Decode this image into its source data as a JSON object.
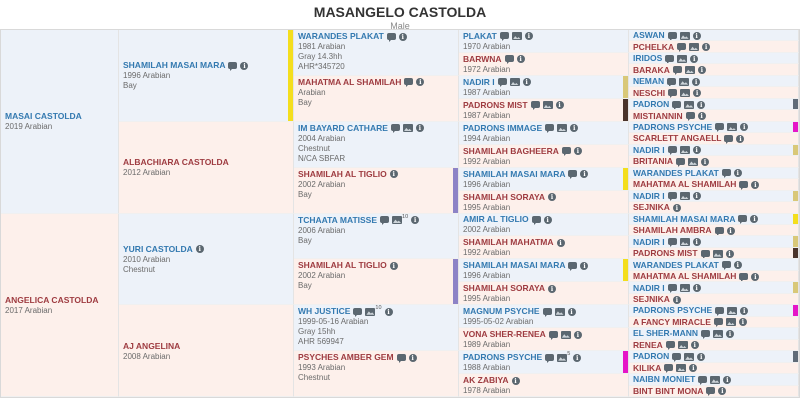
{
  "header": {
    "title": "MASANGELO CASTOLDA",
    "subtitle": "Male"
  },
  "palette": {
    "male_bg": "#edf2f9",
    "female_bg": "#fdf0eb",
    "male_link": "#3379b0",
    "female_link": "#9e3b40",
    "detail_text": "#6b6b6b",
    "icon": "#5b6770"
  },
  "bar_colors": {
    "shamilah_masai_mara": "#f4de1d",
    "shamilah_al_tiglio": "#8d83c6",
    "nadir_i": "#d9c878",
    "padrons_mist": "#4a332a",
    "padrons_psyche": "#e516c8",
    "padron": "#5f6b78"
  },
  "generations": [
    {
      "name": "gen1",
      "cells": [
        {
          "name": "MASAI CASTOLDA",
          "sex": "m",
          "details": [
            "2019 Arabian"
          ],
          "icons": []
        },
        {
          "name": "ANGELICA CASTOLDA",
          "sex": "f",
          "details": [
            "2017 Arabian"
          ],
          "icons": []
        }
      ]
    },
    {
      "name": "gen2",
      "cells": [
        {
          "name": "SHAMILAH MASAI MARA",
          "sex": "m",
          "details": [
            "1996 Arabian",
            "Bay"
          ],
          "icons": [
            "comment",
            "info"
          ],
          "bar": "shamilah_masai_mara"
        },
        {
          "name": "ALBACHIARA CASTOLDA",
          "sex": "f",
          "details": [
            "2012 Arabian"
          ],
          "icons": []
        },
        {
          "name": "YURI CASTOLDA",
          "sex": "m",
          "details": [
            "2010 Arabian",
            "Chestnut"
          ],
          "icons": [
            "info"
          ]
        },
        {
          "name": "AJ ANGELINA",
          "sex": "f",
          "details": [
            "2008 Arabian"
          ],
          "icons": []
        }
      ]
    },
    {
      "name": "gen3",
      "cells": [
        {
          "name": "WARANDES PLAKAT",
          "sex": "m",
          "details": [
            "1981 Arabian",
            "Gray 14.3hh",
            "AHR*345720"
          ],
          "icons": [
            "comment",
            "info"
          ]
        },
        {
          "name": "MAHATMA AL SHAMILAH",
          "sex": "f",
          "details": [
            "Arabian",
            "Bay"
          ],
          "icons": [
            "comment",
            "info"
          ]
        },
        {
          "name": "IM BAYARD CATHARE",
          "sex": "m",
          "details": [
            "2004 Arabian",
            "Chestnut",
            "N/CA SBFAR"
          ],
          "icons": [
            "comment",
            "image",
            "info"
          ]
        },
        {
          "name": "SHAMILAH AL TIGLIO",
          "sex": "f",
          "details": [
            "2002 Arabian",
            "Bay"
          ],
          "icons": [
            "info"
          ],
          "bar": "shamilah_al_tiglio"
        },
        {
          "name": "TCHAATA MATISSE",
          "sex": "m",
          "details": [
            "2006 Arabian",
            "Bay"
          ],
          "icons": [
            "comment",
            "image",
            "info"
          ],
          "image_count": "10"
        },
        {
          "name": "SHAMILAH AL TIGLIO",
          "sex": "f",
          "details": [
            "2002 Arabian",
            "Bay"
          ],
          "icons": [
            "info"
          ],
          "bar": "shamilah_al_tiglio"
        },
        {
          "name": "WH JUSTICE",
          "sex": "m",
          "details": [
            "1999-05-16 Arabian",
            "Gray 15hh",
            "AHR 569947"
          ],
          "icons": [
            "comment",
            "image",
            "info"
          ],
          "image_count": "10"
        },
        {
          "name": "PSYCHES AMBER GEM",
          "sex": "f",
          "details": [
            "1993 Arabian",
            "Chestnut"
          ],
          "icons": [
            "comment",
            "info"
          ]
        }
      ]
    },
    {
      "name": "gen4",
      "cells": [
        {
          "name": "PLAKAT",
          "sex": "m",
          "details": [
            "1970 Arabian"
          ],
          "icons": [
            "comment",
            "image",
            "info"
          ]
        },
        {
          "name": "BARWNA",
          "sex": "f",
          "details": [
            "1972 Arabian"
          ],
          "icons": [
            "comment",
            "info"
          ]
        },
        {
          "name": "NADIR I",
          "sex": "m",
          "details": [
            "1987 Arabian"
          ],
          "icons": [
            "comment",
            "image",
            "info"
          ],
          "bar": "nadir_i"
        },
        {
          "name": "PADRONS MIST",
          "sex": "f",
          "details": [
            "1987 Arabian"
          ],
          "icons": [
            "comment",
            "image",
            "info"
          ],
          "bar": "padrons_mist"
        },
        {
          "name": "PADRONS IMMAGE",
          "sex": "m",
          "details": [
            "1994 Arabian"
          ],
          "icons": [
            "comment",
            "image",
            "info"
          ]
        },
        {
          "name": "SHAMILAH BAGHEERA",
          "sex": "f",
          "details": [
            "1992 Arabian"
          ],
          "icons": [
            "comment",
            "info"
          ]
        },
        {
          "name": "SHAMILAH MASAI MARA",
          "sex": "m",
          "details": [
            "1996 Arabian"
          ],
          "icons": [
            "comment",
            "info"
          ],
          "bar": "shamilah_masai_mara"
        },
        {
          "name": "SHAMILAH SORAYA",
          "sex": "f",
          "details": [
            "1995 Arabian"
          ],
          "icons": [
            "info"
          ]
        },
        {
          "name": "AMIR AL TIGLIO",
          "sex": "m",
          "details": [
            "2002 Arabian"
          ],
          "icons": [
            "comment",
            "info"
          ]
        },
        {
          "name": "SHAMILAH MAHATMA",
          "sex": "f",
          "details": [
            "1992 Arabian"
          ],
          "icons": [
            "info"
          ]
        },
        {
          "name": "SHAMILAH MASAI MARA",
          "sex": "m",
          "details": [
            "1996 Arabian"
          ],
          "icons": [
            "comment",
            "info"
          ],
          "bar": "shamilah_masai_mara"
        },
        {
          "name": "SHAMILAH SORAYA",
          "sex": "f",
          "details": [
            "1995 Arabian"
          ],
          "icons": [
            "info"
          ]
        },
        {
          "name": "MAGNUM PSYCHE",
          "sex": "m",
          "details": [
            "1995-05-02 Arabian"
          ],
          "icons": [
            "comment",
            "image",
            "info"
          ]
        },
        {
          "name": "VONA SHER-RENEA",
          "sex": "f",
          "details": [
            "1989 Arabian"
          ],
          "icons": [
            "comment",
            "image",
            "info"
          ]
        },
        {
          "name": "PADRONS PSYCHE",
          "sex": "m",
          "details": [
            "1988 Arabian"
          ],
          "icons": [
            "comment",
            "image",
            "info"
          ],
          "image_count": "5",
          "bar": "padrons_psyche"
        },
        {
          "name": "AK ZABIYA",
          "sex": "f",
          "details": [
            "1978 Arabian"
          ],
          "icons": [
            "info"
          ]
        }
      ]
    },
    {
      "name": "gen5",
      "cells": [
        {
          "name": "ASWAN",
          "sex": "m",
          "icons": [
            "comment",
            "image",
            "info"
          ]
        },
        {
          "name": "PCHELKA",
          "sex": "f",
          "icons": [
            "comment",
            "image",
            "info"
          ]
        },
        {
          "name": "IRIDOS",
          "sex": "m",
          "icons": [
            "comment",
            "image",
            "info"
          ]
        },
        {
          "name": "BARAKA",
          "sex": "f",
          "icons": [
            "comment",
            "image",
            "info"
          ]
        },
        {
          "name": "NEMAN",
          "sex": "m",
          "icons": [
            "comment",
            "image",
            "info"
          ]
        },
        {
          "name": "NESCHI",
          "sex": "f",
          "icons": [
            "comment",
            "image",
            "info"
          ]
        },
        {
          "name": "PADRON",
          "sex": "m",
          "icons": [
            "comment",
            "image",
            "info"
          ],
          "bar": "padron"
        },
        {
          "name": "MISTIANNIN",
          "sex": "f",
          "icons": [
            "comment",
            "info"
          ]
        },
        {
          "name": "PADRONS PSYCHE",
          "sex": "m",
          "icons": [
            "comment",
            "image",
            "info"
          ],
          "bar": "padrons_psyche"
        },
        {
          "name": "SCARLETT ANGAELL",
          "sex": "f",
          "icons": [
            "comment",
            "info"
          ]
        },
        {
          "name": "NADIR I",
          "sex": "m",
          "icons": [
            "comment",
            "image",
            "info"
          ],
          "bar": "nadir_i"
        },
        {
          "name": "BRITANIA",
          "sex": "f",
          "icons": [
            "comment",
            "image",
            "info"
          ]
        },
        {
          "name": "WARANDES PLAKAT",
          "sex": "m",
          "icons": [
            "comment",
            "info"
          ]
        },
        {
          "name": "MAHATMA AL SHAMILAH",
          "sex": "f",
          "icons": [
            "comment",
            "info"
          ]
        },
        {
          "name": "NADIR I",
          "sex": "m",
          "icons": [
            "comment",
            "image",
            "info"
          ],
          "bar": "nadir_i"
        },
        {
          "name": "SEJNIKA",
          "sex": "f",
          "icons": [
            "info"
          ]
        },
        {
          "name": "SHAMILAH MASAI MARA",
          "sex": "m",
          "icons": [
            "comment",
            "info"
          ],
          "bar": "shamilah_masai_mara"
        },
        {
          "name": "SHAMILAH AMBRA",
          "sex": "f",
          "icons": [
            "comment",
            "info"
          ]
        },
        {
          "name": "NADIR I",
          "sex": "m",
          "icons": [
            "comment",
            "image",
            "info"
          ],
          "bar": "nadir_i"
        },
        {
          "name": "PADRONS MIST",
          "sex": "f",
          "icons": [
            "comment",
            "image",
            "info"
          ],
          "bar": "padrons_mist"
        },
        {
          "name": "WARANDES PLAKAT",
          "sex": "m",
          "icons": [
            "comment",
            "info"
          ]
        },
        {
          "name": "MAHATMA AL SHAMILAH",
          "sex": "f",
          "icons": [
            "comment",
            "info"
          ]
        },
        {
          "name": "NADIR I",
          "sex": "m",
          "icons": [
            "comment",
            "image",
            "info"
          ],
          "bar": "nadir_i"
        },
        {
          "name": "SEJNIKA",
          "sex": "f",
          "icons": [
            "info"
          ]
        },
        {
          "name": "PADRONS PSYCHE",
          "sex": "m",
          "icons": [
            "comment",
            "image",
            "info"
          ],
          "bar": "padrons_psyche"
        },
        {
          "name": "A FANCY MIRACLE",
          "sex": "f",
          "icons": [
            "comment",
            "image",
            "info"
          ]
        },
        {
          "name": "EL SHER-MANN",
          "sex": "m",
          "icons": [
            "comment",
            "image",
            "info"
          ]
        },
        {
          "name": "RENEA",
          "sex": "f",
          "icons": [
            "comment",
            "image",
            "info"
          ]
        },
        {
          "name": "PADRON",
          "sex": "m",
          "icons": [
            "comment",
            "image",
            "info"
          ],
          "bar": "padron"
        },
        {
          "name": "KILIKA",
          "sex": "f",
          "icons": [
            "comment",
            "image",
            "info"
          ]
        },
        {
          "name": "NAIBN MONIET",
          "sex": "m",
          "icons": [
            "comment",
            "image",
            "info"
          ]
        },
        {
          "name": "BINT BINT MONA",
          "sex": "f",
          "icons": [
            "comment",
            "info"
          ]
        }
      ]
    }
  ]
}
